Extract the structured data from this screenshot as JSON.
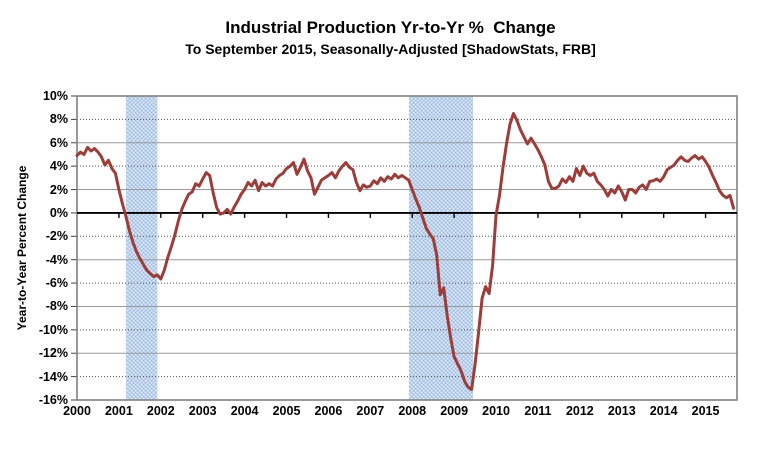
{
  "title": "Industrial Production Yr-to-Yr %  Change",
  "subtitle": "To September 2015, Seasonally-Adjusted [ShadowStats, FRB]",
  "colors": {
    "line": "#9E3C38",
    "recession_band": "#B7CDE9",
    "band_dot_light": "#EAF2FB",
    "band_dot_dark": "#9FC0E2",
    "grid_solid": "#999999",
    "grid_dotted": "#555555",
    "plot_border": "#808080",
    "zero_axis": "#000000",
    "text": "#000000",
    "background": "#FFFFFF"
  },
  "chart_data": {
    "type": "line",
    "title": "Industrial Production Yr-to-Yr %  Change",
    "subtitle": "To September 2015, Seasonally-Adjusted [ShadowStats, FRB]",
    "xlabel": "",
    "ylabel": "Year-to-Year Percent Change",
    "ylim": [
      -16,
      10
    ],
    "ytick_step": 2,
    "ytick_labels": [
      "10%",
      "8%",
      "6%",
      "4%",
      "2%",
      "0%",
      "-2%",
      "-4%",
      "-6%",
      "-8%",
      "-10%",
      "-12%",
      "-14%",
      "-16%"
    ],
    "x_range": [
      2000,
      2015.75
    ],
    "xtick_labels": [
      "2000",
      "2001",
      "2002",
      "2003",
      "2004",
      "2005",
      "2006",
      "2007",
      "2008",
      "2009",
      "2010",
      "2011",
      "2012",
      "2013",
      "2014",
      "2015"
    ],
    "grid": true,
    "legend": "none",
    "gridlines": [
      {
        "v": 8,
        "style": "dotted"
      },
      {
        "v": 6,
        "style": "solid"
      },
      {
        "v": 4,
        "style": "dotted"
      },
      {
        "v": 2,
        "style": "solid"
      },
      {
        "v": -2,
        "style": "dotted"
      },
      {
        "v": -4,
        "style": "solid"
      },
      {
        "v": -6,
        "style": "dotted"
      },
      {
        "v": -8,
        "style": "solid"
      },
      {
        "v": -10,
        "style": "dotted"
      },
      {
        "v": -12,
        "style": "solid"
      },
      {
        "v": -14,
        "style": "dotted"
      }
    ],
    "recession_bands": [
      {
        "from": 2001.17,
        "to": 2001.92
      },
      {
        "from": 2007.92,
        "to": 2009.45
      }
    ],
    "series": [
      {
        "name": "Industrial Production Year-to-Year Percent Change",
        "frequency": "monthly",
        "first_point": "2000-01",
        "last_point": "2015-09",
        "values": [
          4.9,
          5.2,
          5.0,
          5.6,
          5.3,
          5.5,
          5.2,
          4.8,
          4.1,
          4.5,
          3.8,
          3.4,
          2.0,
          0.8,
          -0.3,
          -1.5,
          -2.5,
          -3.3,
          -3.9,
          -4.4,
          -4.9,
          -5.2,
          -5.45,
          -5.3,
          -5.65,
          -4.9,
          -3.8,
          -2.9,
          -1.9,
          -0.7,
          0.3,
          1.0,
          1.6,
          1.8,
          2.5,
          2.3,
          2.9,
          3.45,
          3.2,
          1.7,
          0.45,
          -0.1,
          0.0,
          0.3,
          -0.1,
          0.5,
          1.0,
          1.6,
          2.0,
          2.6,
          2.3,
          2.8,
          1.9,
          2.6,
          2.3,
          2.5,
          2.3,
          2.9,
          3.2,
          3.4,
          3.8,
          4.0,
          4.3,
          3.3,
          3.9,
          4.6,
          3.6,
          3.0,
          1.6,
          2.2,
          2.8,
          3.0,
          3.2,
          3.45,
          3.0,
          3.6,
          4.0,
          4.3,
          3.9,
          3.7,
          2.6,
          1.9,
          2.4,
          2.2,
          2.3,
          2.75,
          2.5,
          3.0,
          2.7,
          3.1,
          2.9,
          3.3,
          3.0,
          3.2,
          3.0,
          2.8,
          2.0,
          1.2,
          0.5,
          -0.4,
          -1.3,
          -1.8,
          -2.2,
          -3.6,
          -7.0,
          -6.4,
          -8.8,
          -10.7,
          -12.3,
          -12.9,
          -13.5,
          -14.4,
          -14.9,
          -15.1,
          -12.9,
          -10.2,
          -7.3,
          -6.3,
          -6.9,
          -4.5,
          -0.2,
          1.5,
          3.9,
          5.9,
          7.6,
          8.5,
          7.9,
          7.1,
          6.5,
          5.9,
          6.4,
          5.9,
          5.4,
          4.8,
          4.1,
          2.7,
          2.1,
          2.1,
          2.3,
          2.9,
          2.6,
          3.1,
          2.7,
          3.8,
          3.2,
          4.0,
          3.4,
          3.2,
          3.4,
          2.7,
          2.4,
          2.0,
          1.45,
          2.0,
          1.7,
          2.3,
          1.8,
          1.1,
          2.0,
          2.0,
          1.7,
          2.2,
          2.4,
          2.0,
          2.7,
          2.75,
          2.9,
          2.7,
          3.1,
          3.7,
          3.9,
          4.1,
          4.5,
          4.8,
          4.5,
          4.4,
          4.7,
          4.9,
          4.6,
          4.8,
          4.4,
          3.9,
          3.2,
          2.6,
          1.9,
          1.5,
          1.3,
          1.5,
          0.4
        ]
      }
    ]
  }
}
